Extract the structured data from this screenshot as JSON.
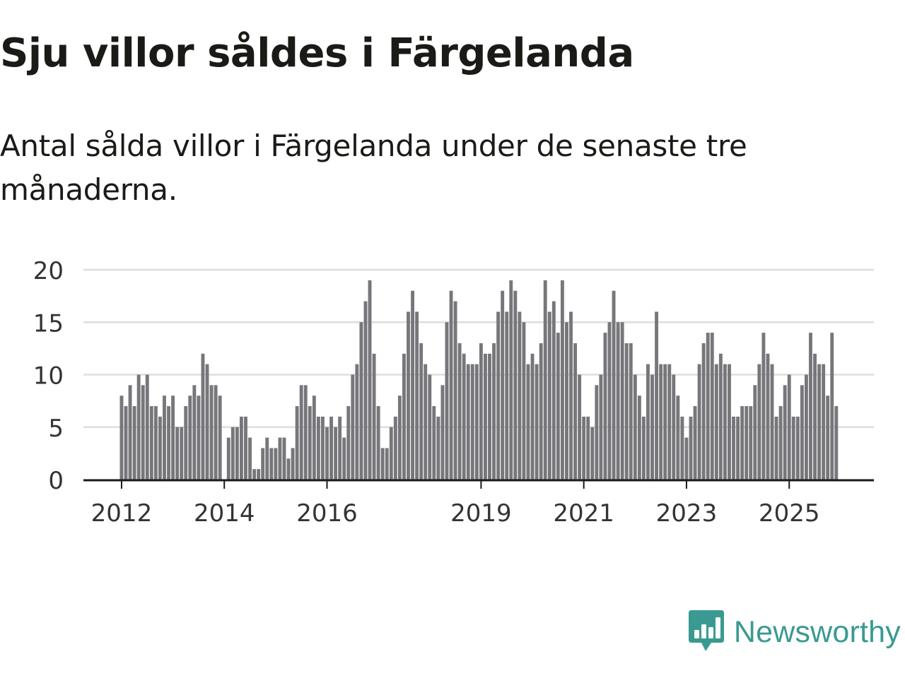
{
  "title": "Sju villor såldes i Färgelanda",
  "subtitle": "Antal sålda villor i Färgelanda under de senaste tre månaderna.",
  "brand": {
    "name": "Newsworthy",
    "icon": "bar-chart-speech-bubble-icon",
    "color": "#3a9a91"
  },
  "colors": {
    "bar": "#77767b",
    "highlight": "#20a39a",
    "grid": "#dddddd",
    "axis": "#1a1a17",
    "text": "#333333"
  },
  "chart_data": {
    "type": "bar",
    "title": "Sju villor såldes i Färgelanda",
    "xlabel": "",
    "ylabel": "",
    "ylim": [
      0,
      20
    ],
    "yticks": [
      0,
      5,
      10,
      15,
      20
    ],
    "grid": true,
    "x_start": "2012-01",
    "frequency": "monthly",
    "xtick_labels": [
      {
        "label": "2012",
        "index": 0
      },
      {
        "label": "2014",
        "index": 24
      },
      {
        "label": "2016",
        "index": 48
      },
      {
        "label": "2019",
        "index": 84
      },
      {
        "label": "2021",
        "index": 108
      },
      {
        "label": "2023",
        "index": 132
      },
      {
        "label": "2025",
        "index": 156
      }
    ],
    "highlight": {
      "index": 168,
      "label": "7"
    },
    "values": [
      8,
      7,
      9,
      7,
      10,
      9,
      10,
      7,
      7,
      6,
      8,
      7,
      8,
      5,
      5,
      7,
      8,
      9,
      8,
      12,
      11,
      9,
      9,
      8,
      0,
      4,
      5,
      5,
      6,
      6,
      4,
      1,
      1,
      3,
      4,
      3,
      3,
      4,
      4,
      2,
      3,
      7,
      9,
      9,
      7,
      8,
      6,
      6,
      5,
      6,
      5,
      6,
      4,
      7,
      10,
      11,
      15,
      17,
      19,
      12,
      7,
      3,
      3,
      5,
      6,
      8,
      12,
      16,
      18,
      16,
      13,
      11,
      10,
      7,
      6,
      9,
      15,
      18,
      17,
      13,
      12,
      11,
      11,
      11,
      13,
      12,
      12,
      13,
      16,
      18,
      16,
      19,
      18,
      16,
      15,
      11,
      12,
      11,
      13,
      19,
      16,
      17,
      14,
      19,
      15,
      16,
      13,
      10,
      6,
      6,
      5,
      9,
      10,
      14,
      15,
      18,
      15,
      15,
      13,
      13,
      10,
      8,
      6,
      11,
      10,
      16,
      11,
      11,
      11,
      10,
      8,
      6,
      4,
      6,
      7,
      11,
      13,
      14,
      14,
      11,
      12,
      11,
      11,
      6,
      6,
      7,
      7,
      7,
      9,
      11,
      14,
      12,
      11,
      6,
      7,
      9,
      10,
      6,
      6,
      9,
      10,
      14,
      12,
      11,
      11,
      8,
      14,
      7
    ]
  }
}
